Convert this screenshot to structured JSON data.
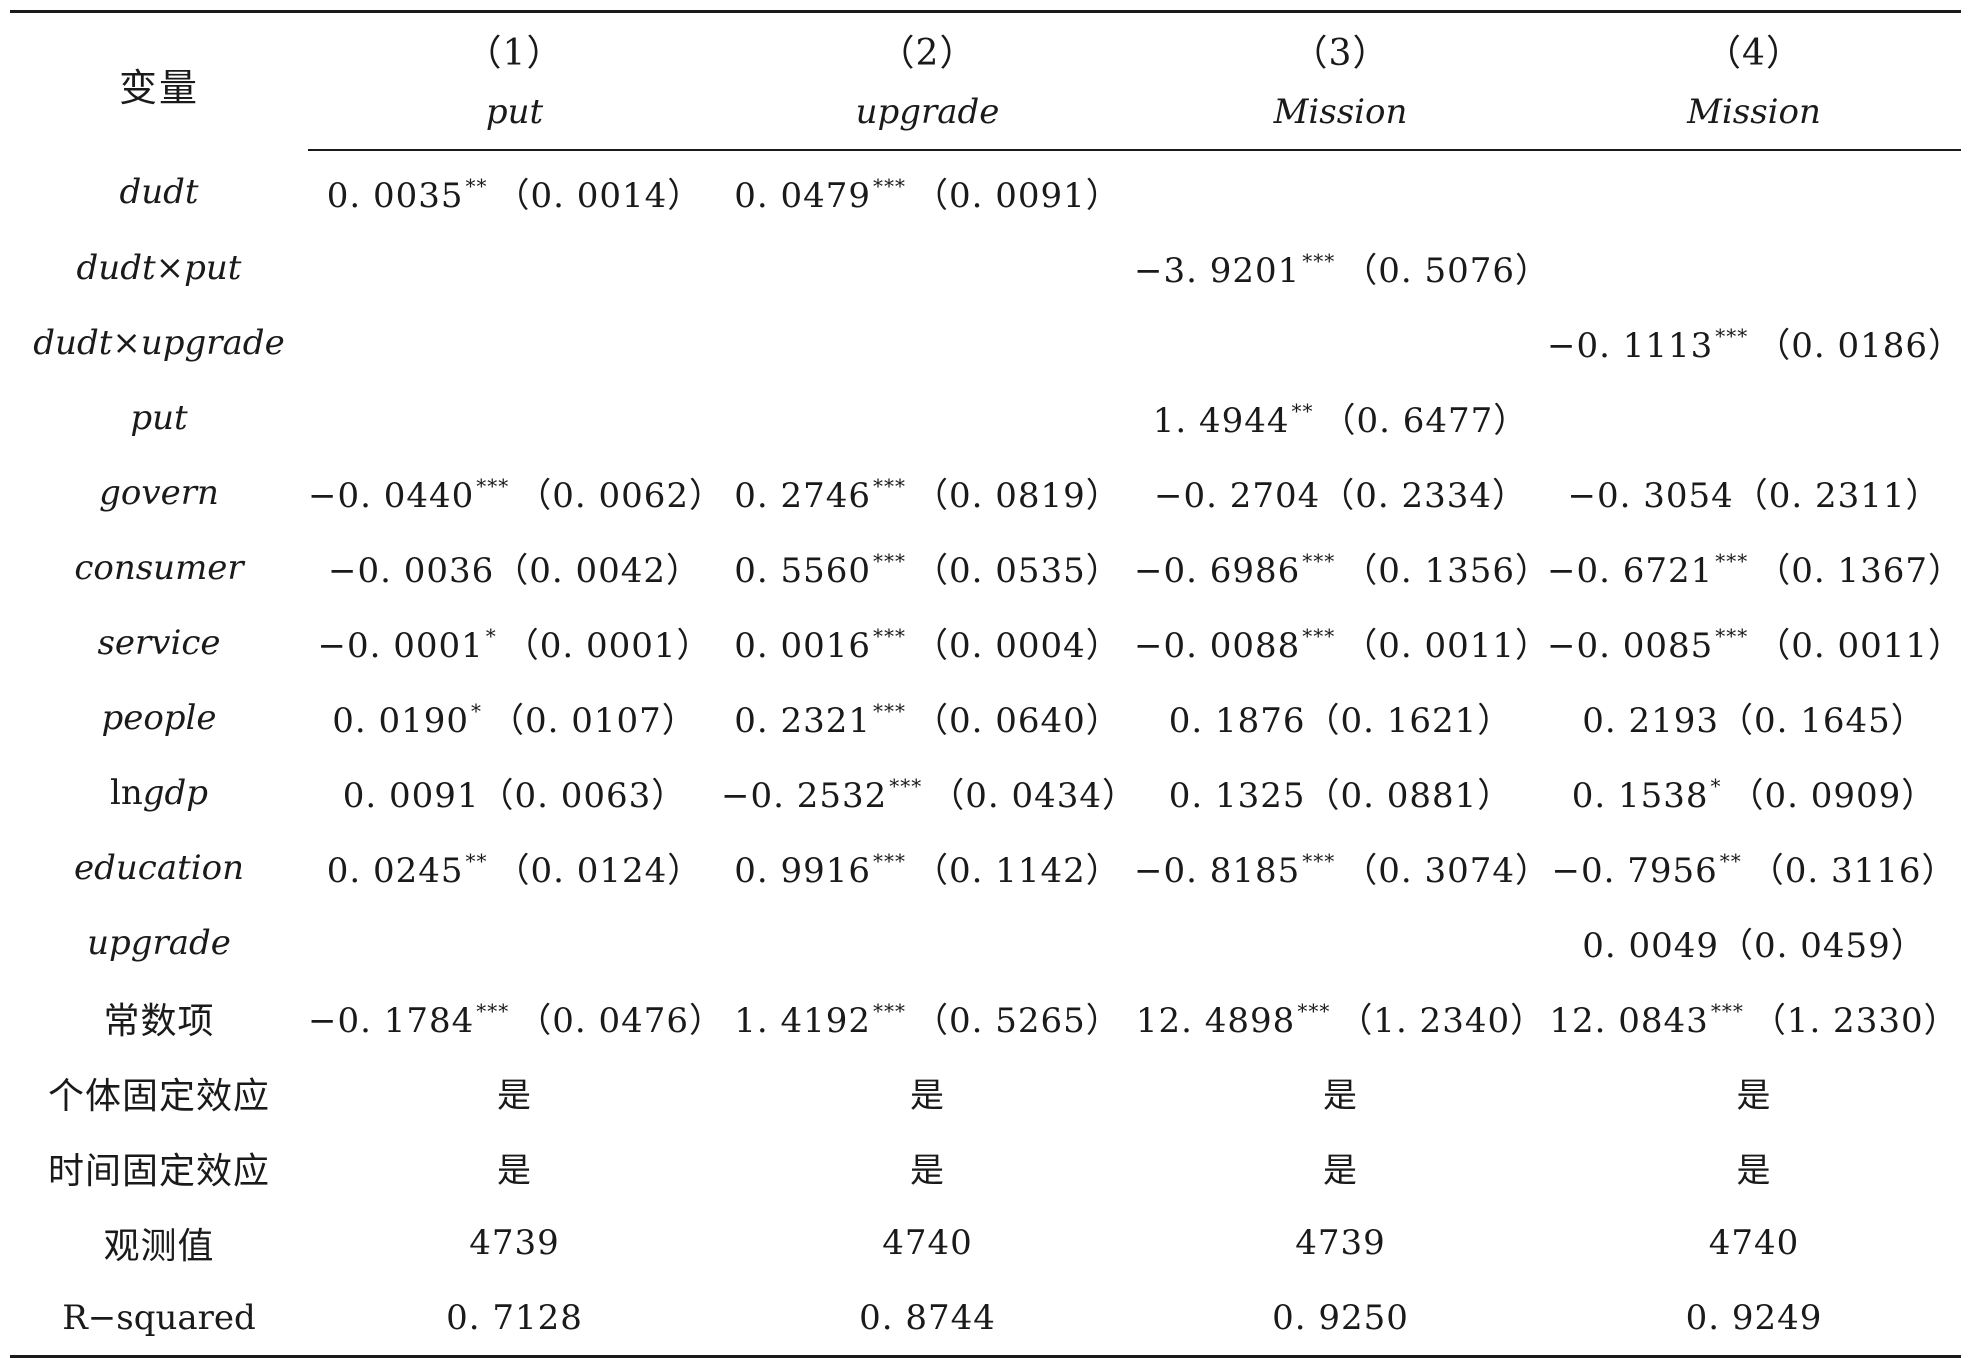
{
  "table": {
    "var_header": "变量",
    "columns": [
      {
        "num": "（1）",
        "depvar": "put"
      },
      {
        "num": "（2）",
        "depvar": "upgrade"
      },
      {
        "num": "（3）",
        "depvar": "Mission"
      },
      {
        "num": "（4）",
        "depvar": "Mission"
      }
    ],
    "rows": [
      {
        "label": "dudt",
        "style": "italic",
        "cells": [
          {
            "coef": "0. 0035",
            "stars": "**",
            "se": "（0. 0014）"
          },
          {
            "coef": "0. 0479",
            "stars": "***",
            "se": "（0. 0091）"
          },
          {
            "coef": "",
            "stars": "",
            "se": ""
          },
          {
            "coef": "",
            "stars": "",
            "se": ""
          }
        ]
      },
      {
        "label": "dudt×put",
        "style": "italic",
        "cells": [
          {
            "coef": "",
            "stars": "",
            "se": ""
          },
          {
            "coef": "",
            "stars": "",
            "se": ""
          },
          {
            "coef": "−3. 9201",
            "stars": "***",
            "se": "（0. 5076）"
          },
          {
            "coef": "",
            "stars": "",
            "se": ""
          }
        ]
      },
      {
        "label": "dudt×upgrade",
        "style": "italic",
        "cells": [
          {
            "coef": "",
            "stars": "",
            "se": ""
          },
          {
            "coef": "",
            "stars": "",
            "se": ""
          },
          {
            "coef": "",
            "stars": "",
            "se": ""
          },
          {
            "coef": "−0. 1113",
            "stars": "***",
            "se": "（0. 0186）"
          }
        ]
      },
      {
        "label": "put",
        "style": "italic",
        "cells": [
          {
            "coef": "",
            "stars": "",
            "se": ""
          },
          {
            "coef": "",
            "stars": "",
            "se": ""
          },
          {
            "coef": "1. 4944",
            "stars": "**",
            "se": "（0. 6477）"
          },
          {
            "coef": "",
            "stars": "",
            "se": ""
          }
        ]
      },
      {
        "label": "govern",
        "style": "italic",
        "cells": [
          {
            "coef": "−0. 0440",
            "stars": "***",
            "se": "（0. 0062）"
          },
          {
            "coef": "0. 2746",
            "stars": "***",
            "se": "（0. 0819）"
          },
          {
            "coef": "−0. 2704",
            "stars": "",
            "se": "（0. 2334）"
          },
          {
            "coef": "−0. 3054",
            "stars": "",
            "se": "（0. 2311）"
          }
        ]
      },
      {
        "label": "consumer",
        "style": "italic",
        "cells": [
          {
            "coef": "−0. 0036",
            "stars": "",
            "se": "（0. 0042）"
          },
          {
            "coef": "0. 5560",
            "stars": "***",
            "se": "（0. 0535）"
          },
          {
            "coef": "−0. 6986",
            "stars": "***",
            "se": "（0. 1356）"
          },
          {
            "coef": "−0. 6721",
            "stars": "***",
            "se": "（0. 1367）"
          }
        ]
      },
      {
        "label": "service",
        "style": "italic",
        "cells": [
          {
            "coef": "−0. 0001",
            "stars": "*",
            "se": "（0. 0001）"
          },
          {
            "coef": "0. 0016",
            "stars": "***",
            "se": "（0. 0004）"
          },
          {
            "coef": "−0. 0088",
            "stars": "***",
            "se": "（0. 0011）"
          },
          {
            "coef": "−0. 0085",
            "stars": "***",
            "se": "（0. 0011）"
          }
        ]
      },
      {
        "label": "people",
        "style": "italic",
        "cells": [
          {
            "coef": "0. 0190",
            "stars": "*",
            "se": "（0. 0107）"
          },
          {
            "coef": "0. 2321",
            "stars": "***",
            "se": "（0. 0640）"
          },
          {
            "coef": "0. 1876",
            "stars": "",
            "se": "（0. 1621）"
          },
          {
            "coef": "0. 2193",
            "stars": "",
            "se": "（0. 1645）"
          }
        ]
      },
      {
        "label_prefix": "ln",
        "label": "gdp",
        "style": "mixed",
        "cells": [
          {
            "coef": "0. 0091",
            "stars": "",
            "se": "（0. 0063）"
          },
          {
            "coef": "−0. 2532",
            "stars": "***",
            "se": "（0. 0434）"
          },
          {
            "coef": "0. 1325",
            "stars": "",
            "se": "（0. 0881）"
          },
          {
            "coef": "0. 1538",
            "stars": "*",
            "se": "（0. 0909）"
          }
        ]
      },
      {
        "label": "education",
        "style": "italic",
        "cells": [
          {
            "coef": "0. 0245",
            "stars": "**",
            "se": "（0. 0124）"
          },
          {
            "coef": "0. 9916",
            "stars": "***",
            "se": "（0. 1142）"
          },
          {
            "coef": "−0. 8185",
            "stars": "***",
            "se": "（0. 3074）"
          },
          {
            "coef": "−0. 7956",
            "stars": "**",
            "se": "（0. 3116）"
          }
        ]
      },
      {
        "label": "upgrade",
        "style": "italic",
        "cells": [
          {
            "coef": "",
            "stars": "",
            "se": ""
          },
          {
            "coef": "",
            "stars": "",
            "se": ""
          },
          {
            "coef": "",
            "stars": "",
            "se": ""
          },
          {
            "coef": "0. 0049",
            "stars": "",
            "se": "（0. 0459）"
          }
        ]
      },
      {
        "label": "常数项",
        "style": "cjk",
        "cells": [
          {
            "coef": "−0. 1784",
            "stars": "***",
            "se": "（0. 0476）"
          },
          {
            "coef": "1. 4192",
            "stars": "***",
            "se": "（0. 5265）"
          },
          {
            "coef": "12. 4898",
            "stars": "***",
            "se": "（1. 2340）"
          },
          {
            "coef": "12. 0843",
            "stars": "***",
            "se": "（1. 2330）"
          }
        ]
      },
      {
        "label": "个体固定效应",
        "style": "cjk",
        "cells": [
          {
            "text": "是"
          },
          {
            "text": "是"
          },
          {
            "text": "是"
          },
          {
            "text": "是"
          }
        ]
      },
      {
        "label": "时间固定效应",
        "style": "cjk",
        "cells": [
          {
            "text": "是"
          },
          {
            "text": "是"
          },
          {
            "text": "是"
          },
          {
            "text": "是"
          }
        ]
      },
      {
        "label": "观测值",
        "style": "cjk",
        "cells": [
          {
            "text": "4739"
          },
          {
            "text": "4740"
          },
          {
            "text": "4739"
          },
          {
            "text": "4740"
          }
        ]
      },
      {
        "label": "R−squared",
        "style": "plain",
        "cells": [
          {
            "text": "0. 7128"
          },
          {
            "text": "0. 8744"
          },
          {
            "text": "0. 9250"
          },
          {
            "text": "0. 9249"
          }
        ]
      }
    ]
  }
}
